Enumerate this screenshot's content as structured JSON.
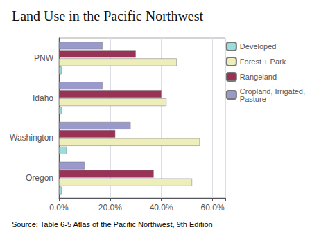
{
  "chart_data": {
    "type": "bar",
    "orientation": "horizontal",
    "title": "Land Use in the Pacific Northwest",
    "annotations": [
      "Source: Table 6-5 Atlas of the Pacific Northwest, 9th Edition"
    ],
    "categories": [
      "Oregon",
      "Washington",
      "Idaho",
      "PNW"
    ],
    "series": [
      {
        "name": "Developed",
        "color": "#99dddd",
        "values": [
          0.01,
          0.03,
          0.01,
          0.01
        ]
      },
      {
        "name": "Forest + Park",
        "color": "#eeeebb",
        "values": [
          0.52,
          0.55,
          0.42,
          0.46
        ]
      },
      {
        "name": "Rangeland",
        "color": "#993355",
        "values": [
          0.37,
          0.22,
          0.4,
          0.3
        ]
      },
      {
        "name": "Cropland, Irrigated,\nPasture",
        "color": "#9999cc",
        "values": [
          0.1,
          0.28,
          0.17,
          0.17
        ]
      }
    ],
    "xlim": [
      0,
      0.65
    ],
    "xticks": [
      {
        "value": 0,
        "label": "0.0%"
      },
      {
        "value": 0.2,
        "label": "20.0%"
      },
      {
        "value": 0.4,
        "label": "40.0%"
      },
      {
        "value": 0.6,
        "label": "60.0%"
      }
    ],
    "grid": true,
    "legend": "upper right"
  }
}
